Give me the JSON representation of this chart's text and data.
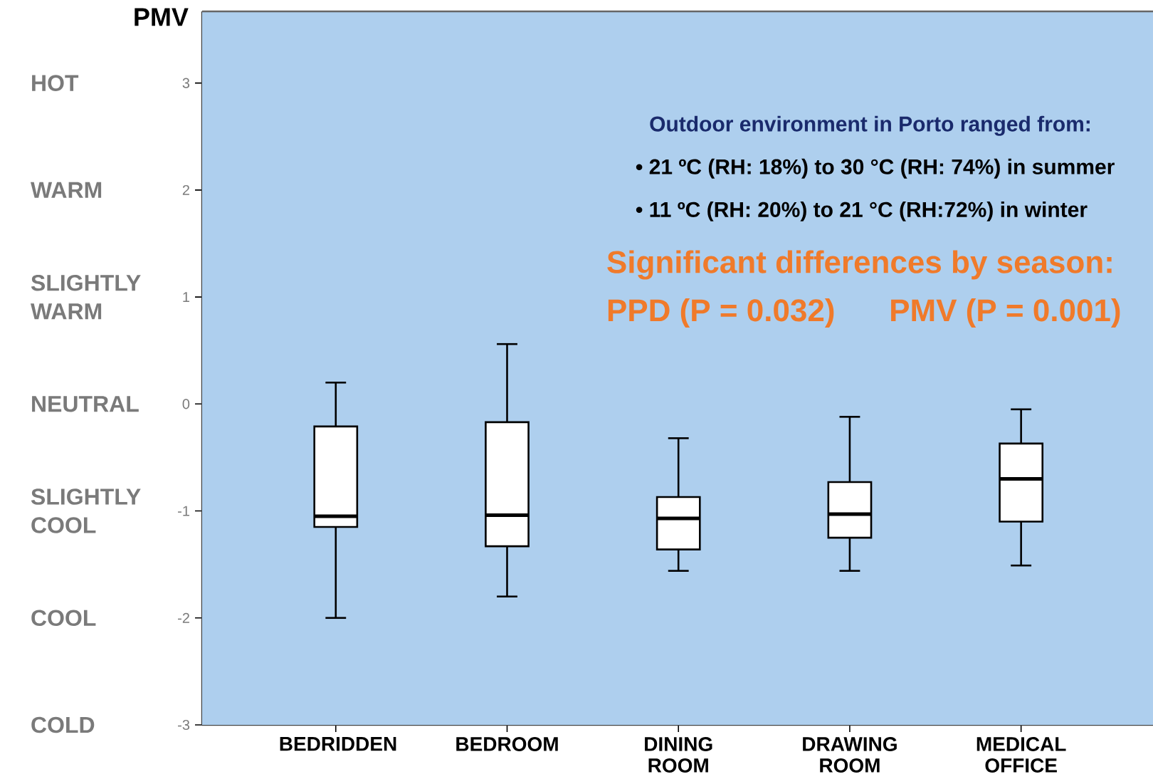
{
  "chart_data": {
    "type": "box",
    "ylabel": "PMV",
    "categories": [
      "BEDRIDDEN",
      "BEDROOM",
      "DINING ROOM",
      "DRAWING ROOM",
      "MEDICAL OFFICE"
    ],
    "boxes": [
      {
        "low": -2.0,
        "q1": -1.15,
        "median": -1.05,
        "q3": -0.21,
        "high": 0.2
      },
      {
        "low": -1.8,
        "q1": -1.33,
        "median": -1.04,
        "q3": -0.17,
        "high": 0.56
      },
      {
        "low": -1.56,
        "q1": -1.36,
        "median": -1.07,
        "q3": -0.87,
        "high": -0.32
      },
      {
        "low": -1.56,
        "q1": -1.25,
        "median": -1.03,
        "q3": -0.73,
        "high": -0.12
      },
      {
        "low": -1.51,
        "q1": -1.1,
        "median": -0.7,
        "q3": -0.37,
        "high": -0.05
      }
    ],
    "color": "#000000",
    "ylim": [
      -3,
      3.67
    ],
    "yticks": [
      -3,
      -2,
      -1,
      0,
      1,
      2,
      3
    ],
    "annotations": [
      "HOT",
      "WARM",
      "SLIGHTLY WARM",
      "NEUTRAL",
      "SLIGHTLY COOL",
      "COOL",
      "COLD",
      "Outdoor environment  in Porto ranged from:",
      "• 21 ºC (RH: 18%) to 30 °C (RH: 74%) in summer",
      "• 11 ºC (RH: 20%) to 21 °C (RH:72%) in winter",
      "Significant differences by season:",
      "PPD (P = 0.032)",
      "PMV (P = 0.001)"
    ]
  }
}
